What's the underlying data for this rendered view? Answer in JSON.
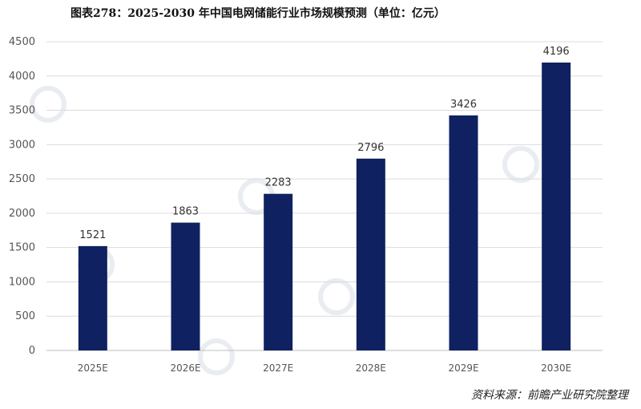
{
  "chart_data": {
    "type": "bar",
    "title": "图表278：2025-2030 年中国电网储能行业市场规模预测（单位：亿元）",
    "categories": [
      "2025E",
      "2026E",
      "2027E",
      "2028E",
      "2029E",
      "2030E"
    ],
    "values": [
      1521,
      1863,
      2283,
      2796,
      3426,
      4196
    ],
    "data_labels": [
      "1521",
      "1863",
      "2283",
      "2796",
      "3426",
      "4196"
    ],
    "yticks": [
      "0",
      "500",
      "1000",
      "1500",
      "2000",
      "2500",
      "3000",
      "3500",
      "4000",
      "4500"
    ],
    "ylim": [
      0,
      4500
    ],
    "grid": true,
    "legend": "none",
    "bar_color": "#0f2160",
    "source": "资料来源：前瞻产业研究院整理"
  }
}
